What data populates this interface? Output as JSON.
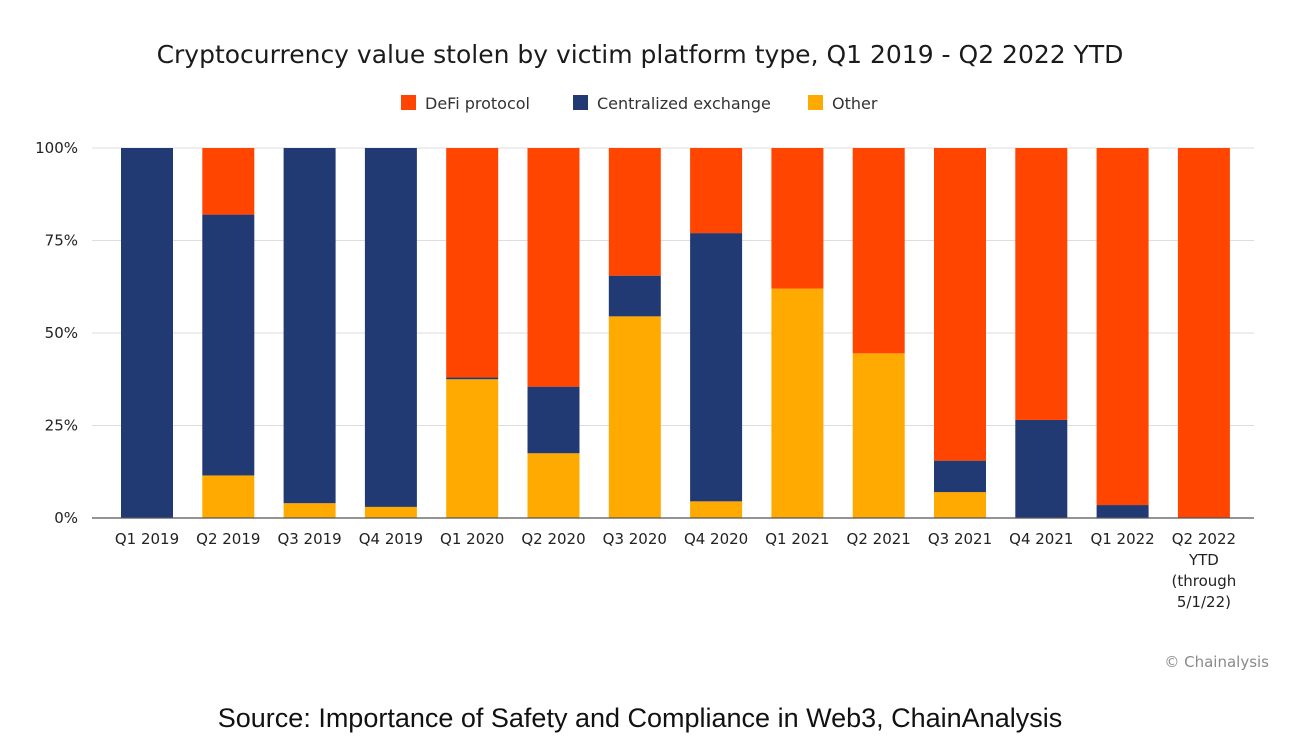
{
  "chart_data": {
    "type": "bar",
    "stacked": true,
    "title": "Cryptocurrency value stolen by victim platform type, Q1 2019 - Q2 2022 YTD",
    "xlabel": "",
    "ylabel": "",
    "ylim": [
      0,
      100
    ],
    "y_ticks": [
      "0%",
      "25%",
      "50%",
      "75%",
      "100%"
    ],
    "y_tick_values": [
      0,
      25,
      50,
      75,
      100
    ],
    "grid": true,
    "legend_position": "top-center",
    "categories": [
      "Q1 2019",
      "Q2 2019",
      "Q3 2019",
      "Q4 2019",
      "Q1 2020",
      "Q2 2020",
      "Q3 2020",
      "Q4 2020",
      "Q1 2021",
      "Q2 2021",
      "Q3 2021",
      "Q4 2021",
      "Q1 2022",
      "Q2 2022 YTD (through 5/1/22)"
    ],
    "category_label_lines": [
      [
        "Q1 2019"
      ],
      [
        "Q2 2019"
      ],
      [
        "Q3 2019"
      ],
      [
        "Q4 2019"
      ],
      [
        "Q1 2020"
      ],
      [
        "Q2 2020"
      ],
      [
        "Q3 2020"
      ],
      [
        "Q4 2020"
      ],
      [
        "Q1 2021"
      ],
      [
        "Q2 2021"
      ],
      [
        "Q3 2021"
      ],
      [
        "Q4 2021"
      ],
      [
        "Q1 2022"
      ],
      [
        "Q2 2022",
        "YTD",
        "(through",
        "5/1/22)"
      ]
    ],
    "series": [
      {
        "name": "Other",
        "color": "#FFAA00",
        "values": [
          0,
          11.5,
          4,
          3,
          37.5,
          17.5,
          54.5,
          4.5,
          62,
          44.5,
          7,
          0,
          0,
          0
        ]
      },
      {
        "name": "Centralized exchange",
        "color": "#223A73",
        "values": [
          100,
          70.5,
          96,
          97,
          0.5,
          18,
          11,
          72.5,
          0,
          0,
          8.5,
          26.5,
          3.5,
          0
        ]
      },
      {
        "name": "DeFi protocol",
        "color": "#FF4500",
        "values": [
          0,
          18,
          0,
          0,
          62,
          64.5,
          34.5,
          23,
          38,
          55.5,
          84.5,
          73.5,
          96.5,
          100
        ]
      }
    ],
    "legend": [
      {
        "name": "DeFi protocol",
        "color": "#FF4500"
      },
      {
        "name": "Centralized exchange",
        "color": "#223A73"
      },
      {
        "name": "Other",
        "color": "#FFAA00"
      }
    ],
    "credit": "© Chainalysis"
  },
  "footer": {
    "source": "Source: Importance of Safety and Compliance in Web3, ChainAnalysis"
  }
}
